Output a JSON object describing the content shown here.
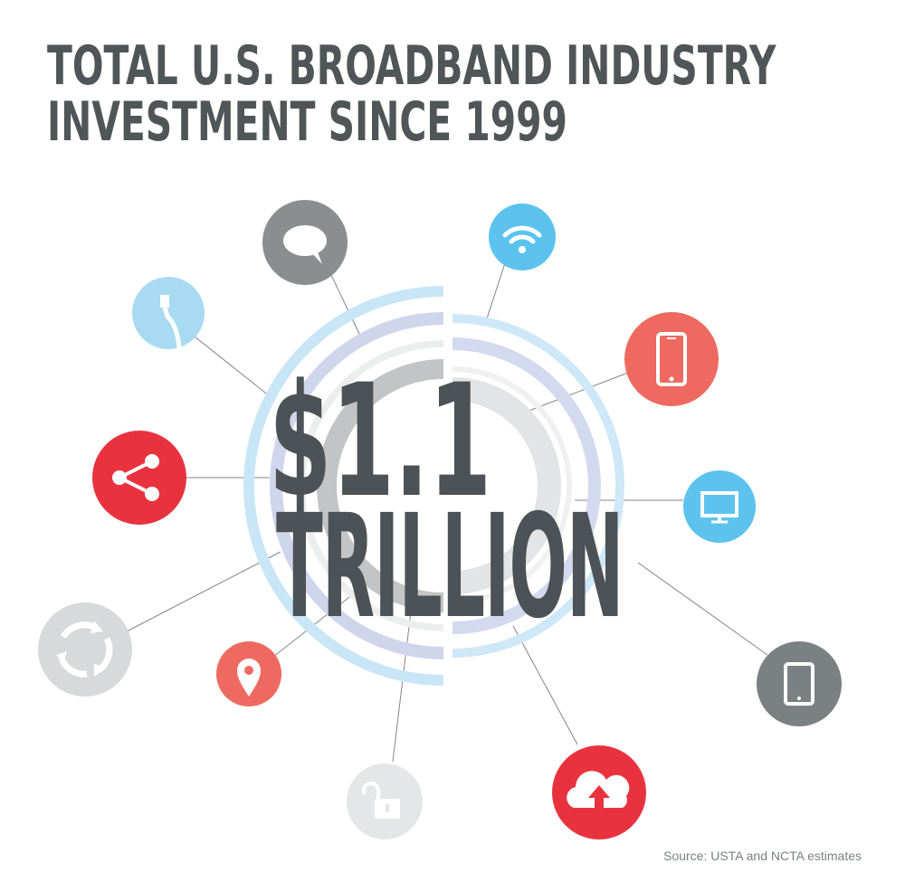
{
  "title": {
    "line1": "TOTAL U.S. BROADBAND INDUSTRY",
    "line2": "INVESTMENT SINCE 1999"
  },
  "headline": {
    "amount": "$1.1",
    "unit": "TRILLION"
  },
  "source": "Source: USTA and NCTA estimates",
  "icons": [
    {
      "name": "chat-bubble-icon",
      "color": "#8a8e90"
    },
    {
      "name": "wifi-icon",
      "color": "#5cc3ee"
    },
    {
      "name": "ethernet-cable-icon",
      "color": "#a8dbf2"
    },
    {
      "name": "smartphone-icon",
      "color": "#ee6a60"
    },
    {
      "name": "share-icon",
      "color": "#e8333f"
    },
    {
      "name": "monitor-icon",
      "color": "#5cc3ee"
    },
    {
      "name": "sync-icon",
      "color": "#d8d9da"
    },
    {
      "name": "location-pin-icon",
      "color": "#ee6a60"
    },
    {
      "name": "tablet-icon",
      "color": "#7b8083"
    },
    {
      "name": "unlock-icon",
      "color": "#e5e6e7"
    },
    {
      "name": "cloud-upload-icon",
      "color": "#e8333f"
    }
  ],
  "colors": {
    "text": "#505558",
    "ring_light_blue": "#c9e6f6",
    "ring_lavender": "#cfd6ec",
    "ring_gray": "#e3e4e5",
    "ring_dark_gray": "#c2c4c6"
  }
}
